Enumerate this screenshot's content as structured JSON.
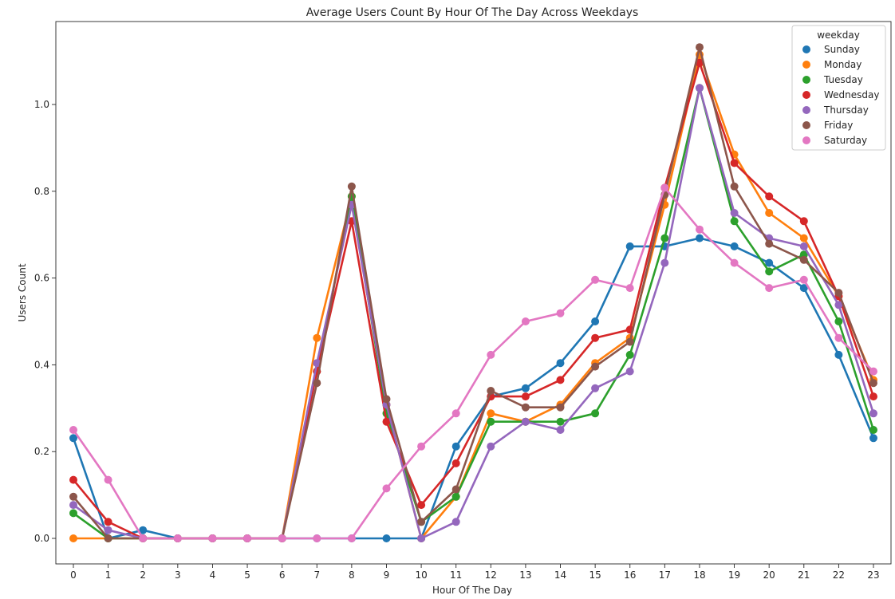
{
  "chart_data": {
    "type": "line",
    "title": "Average Users Count By Hour Of The Day Across Weekdays",
    "xlabel": "Hour Of The Day",
    "ylabel": "Users Count",
    "categories": [
      "0",
      "1",
      "2",
      "3",
      "4",
      "5",
      "6",
      "7",
      "8",
      "9",
      "10",
      "11",
      "12",
      "13",
      "14",
      "15",
      "16",
      "17",
      "18",
      "19",
      "20",
      "21",
      "22",
      "23"
    ],
    "ylim": [
      -0.06,
      1.18
    ],
    "yticks": [
      "0.0",
      "0.2",
      "0.4",
      "0.6",
      "0.8",
      "1.0"
    ],
    "ytick_values": [
      0.0,
      0.2,
      0.4,
      0.6,
      0.8,
      1.0
    ],
    "grid": false,
    "legend": {
      "title": "weekday",
      "placement": "top-right"
    },
    "series": [
      {
        "name": "Sunday",
        "color": "#1f77b4",
        "values": [
          0.231,
          0.0,
          0.019,
          0.0,
          0.0,
          0.0,
          0.0,
          0.0,
          0.0,
          0.0,
          0.0,
          0.212,
          0.327,
          0.346,
          0.404,
          0.5,
          0.673,
          0.673,
          0.692,
          0.673,
          0.635,
          0.577,
          0.423,
          0.231
        ]
      },
      {
        "name": "Monday",
        "color": "#ff7f0e",
        "values": [
          0.0,
          0.0,
          0.0,
          0.0,
          0.0,
          0.0,
          0.0,
          0.462,
          0.788,
          0.308,
          0.0,
          0.096,
          0.288,
          0.269,
          0.308,
          0.404,
          0.462,
          0.769,
          1.115,
          0.885,
          0.75,
          0.692,
          0.558,
          0.365
        ]
      },
      {
        "name": "Tuesday",
        "color": "#2ca02c",
        "values": [
          0.058,
          0.0,
          0.0,
          0.0,
          0.0,
          0.0,
          0.0,
          0.385,
          0.788,
          0.288,
          0.038,
          0.096,
          0.269,
          0.269,
          0.269,
          0.288,
          0.423,
          0.692,
          1.038,
          0.731,
          0.615,
          0.654,
          0.5,
          0.25
        ]
      },
      {
        "name": "Wednesday",
        "color": "#d62728",
        "values": [
          0.135,
          0.038,
          0.0,
          0.0,
          0.0,
          0.0,
          0.0,
          0.385,
          0.731,
          0.269,
          0.077,
          0.173,
          0.327,
          0.327,
          0.365,
          0.462,
          0.481,
          0.808,
          1.096,
          0.865,
          0.788,
          0.731,
          0.558,
          0.327
        ]
      },
      {
        "name": "Thursday",
        "color": "#9467bd",
        "values": [
          0.077,
          0.019,
          0.0,
          0.0,
          0.0,
          0.0,
          0.0,
          0.404,
          0.769,
          0.308,
          0.0,
          0.038,
          0.212,
          0.269,
          0.25,
          0.346,
          0.385,
          0.635,
          1.038,
          0.75,
          0.692,
          0.673,
          0.538,
          0.288
        ]
      },
      {
        "name": "Friday",
        "color": "#8c564b",
        "values": [
          0.096,
          0.0,
          0.0,
          0.0,
          0.0,
          0.0,
          0.0,
          0.358,
          0.811,
          0.321,
          0.038,
          0.113,
          0.34,
          0.302,
          0.302,
          0.396,
          0.453,
          0.792,
          1.132,
          0.811,
          0.679,
          0.642,
          0.566,
          0.358
        ]
      },
      {
        "name": "Saturday",
        "color": "#e377c2",
        "values": [
          0.25,
          0.135,
          0.0,
          0.0,
          0.0,
          0.0,
          0.0,
          0.0,
          0.0,
          0.115,
          0.212,
          0.288,
          0.423,
          0.5,
          0.519,
          0.596,
          0.577,
          0.808,
          0.712,
          0.635,
          0.577,
          0.596,
          0.462,
          0.385
        ]
      }
    ]
  }
}
